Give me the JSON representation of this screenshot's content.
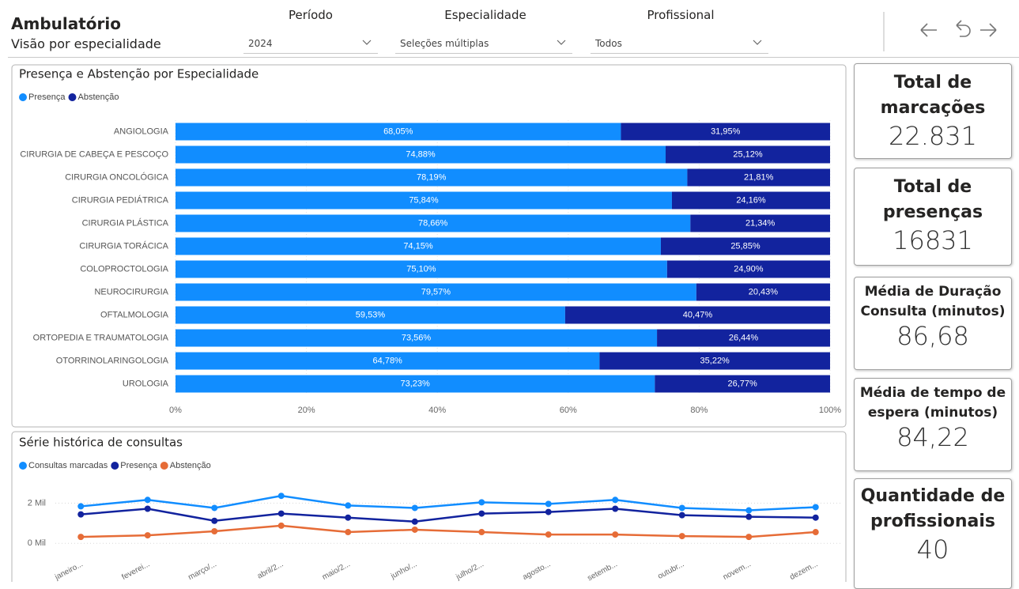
{
  "header": {
    "title": "Ambulatório",
    "subtitle": "Visão por especialidade"
  },
  "filters": [
    {
      "label": "Período",
      "value": "2024"
    },
    {
      "label": "Especialidade",
      "value": "Seleções múltiplas"
    },
    {
      "label": "Profissional",
      "value": "Todos"
    }
  ],
  "kpis": [
    {
      "title": "Total de marcações",
      "value": "22.831"
    },
    {
      "title": "Total de presenças",
      "value": "16831"
    },
    {
      "title": "Média de Duração Consulta (minutos)",
      "value": "86,68"
    },
    {
      "title": "Média de tempo de espera (minutos)",
      "value": "84,22"
    },
    {
      "title": "Quantidade de profissionais",
      "value": "40"
    }
  ],
  "chart_data": [
    {
      "type": "bar",
      "orientation": "horizontal",
      "stacked": true,
      "title": "Presença e Abstenção por Especialidade",
      "categories": [
        "ANGIOLOGIA",
        "CIRURGIA DE CABEÇA E PESCOÇO",
        "CIRURGIA ONCOLÓGICA",
        "CIRURGIA PEDIÁTRICA",
        "CIRURGIA PLÁSTICA",
        "CIRURGIA TORÁCICA",
        "COLOPROCTOLOGIA",
        "NEUROCIRURGIA",
        "OFTALMOLOGIA",
        "ORTOPEDIA E TRAUMATOLOGIA",
        "OTORRINOLARINGOLOGIA",
        "UROLOGIA"
      ],
      "series": [
        {
          "name": "Presença",
          "color": "#118DFF",
          "values": [
            68.05,
            74.88,
            78.19,
            75.84,
            78.66,
            74.15,
            75.1,
            79.57,
            59.53,
            73.56,
            64.78,
            73.23
          ],
          "value_labels": [
            "68,05%",
            "74,88%",
            "78,19%",
            "75,84%",
            "78,66%",
            "74,15%",
            "75,10%",
            "79,57%",
            "59,53%",
            "73,56%",
            "64,78%",
            "73,23%"
          ]
        },
        {
          "name": "Abstenção",
          "color": "#12239E",
          "values": [
            31.95,
            25.12,
            21.81,
            24.16,
            21.34,
            25.85,
            24.9,
            20.43,
            40.47,
            26.44,
            35.22,
            26.77
          ],
          "value_labels": [
            "31,95%",
            "25,12%",
            "21,81%",
            "24,16%",
            "21,34%",
            "25,85%",
            "24,90%",
            "20,43%",
            "40,47%",
            "26,44%",
            "35,22%",
            "26,77%"
          ]
        }
      ],
      "xlim": [
        0,
        100
      ],
      "xticks": [
        {
          "value": 0,
          "label": "0%"
        },
        {
          "value": 20,
          "label": "20%"
        },
        {
          "value": 40,
          "label": "40%"
        },
        {
          "value": 60,
          "label": "60%"
        },
        {
          "value": 80,
          "label": "80%"
        },
        {
          "value": 100,
          "label": "100%"
        }
      ],
      "grid": true,
      "legend": "top-left"
    },
    {
      "type": "line",
      "title": "Série histórica de consultas",
      "categories": [
        "janeiro...",
        "feverei...",
        "março/...",
        "abril/2...",
        "maio/2...",
        "junho/...",
        "julho/2...",
        "agosto...",
        "setemb...",
        "outubr...",
        "novem...",
        "dezem..."
      ],
      "series": [
        {
          "name": "Consultas marcadas",
          "color": "#118DFF",
          "values": [
            1840,
            2160,
            1760,
            2360,
            1880,
            1760,
            2040,
            1960,
            2160,
            1760,
            1640,
            1800
          ]
        },
        {
          "name": "Presença",
          "color": "#12239E",
          "values": [
            1440,
            1720,
            1120,
            1480,
            1280,
            1080,
            1480,
            1560,
            1720,
            1400,
            1320,
            1280
          ]
        },
        {
          "name": "Abstenção",
          "color": "#E66C37",
          "values": [
            320,
            400,
            600,
            880,
            560,
            680,
            560,
            440,
            440,
            360,
            320,
            560
          ]
        }
      ],
      "ylim": [
        -500,
        2800
      ],
      "yticks": [
        {
          "value": 0,
          "label": "0 Mil"
        },
        {
          "value": 2000,
          "label": "2 Mil"
        }
      ],
      "grid": true,
      "legend": "top-left"
    }
  ]
}
